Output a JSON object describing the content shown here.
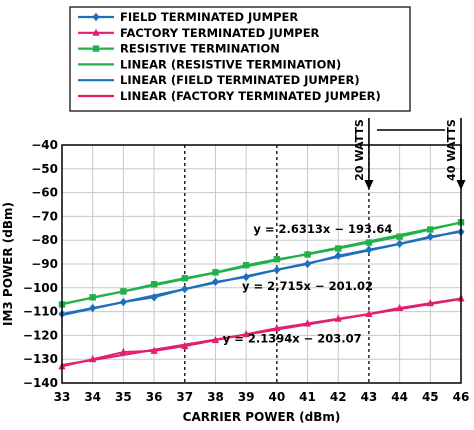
{
  "chart_data": {
    "type": "line",
    "xlabel": "CARRIER POWER (dBm)",
    "ylabel": "IM3 POWER (dBm)",
    "xlim": [
      33,
      46
    ],
    "ylim": [
      -140,
      -40
    ],
    "x_ticks": [
      33,
      34,
      35,
      36,
      37,
      38,
      39,
      40,
      41,
      42,
      43,
      44,
      45,
      46
    ],
    "y_ticks": [
      -40,
      -50,
      -60,
      -70,
      -80,
      -90,
      -100,
      -110,
      -120,
      -130,
      -140
    ],
    "y_tick_labels": [
      "−40",
      "−50",
      "−60",
      "−70",
      "−80",
      "−90",
      "−100",
      "−110",
      "−120",
      "−130",
      "−140"
    ],
    "grid": true,
    "emphasized_gridlines_x": [
      37,
      40,
      43
    ],
    "legend_position": "top",
    "series": [
      {
        "name": "FIELD TERMINATED JUMPER",
        "color": "#1f6fbf",
        "marker": "diamond",
        "x": [
          33,
          34,
          35,
          36,
          37,
          38,
          39,
          40,
          41,
          42,
          43,
          44,
          45,
          46
        ],
        "y": [
          -111,
          -108.5,
          -106,
          -104,
          -100.5,
          -97.5,
          -95.5,
          -92.5,
          -90,
          -86.5,
          -84,
          -81.5,
          -78.5,
          -76.5
        ]
      },
      {
        "name": "FACTORY TERMINATED JUMPER",
        "color": "#e0206e",
        "marker": "triangle",
        "x": [
          33,
          34,
          35,
          36,
          37,
          38,
          39,
          40,
          41,
          42,
          43,
          44,
          45,
          46
        ],
        "y": [
          -133,
          -130,
          -127,
          -126.5,
          -124.5,
          -122,
          -119.5,
          -117,
          -115,
          -113,
          -111,
          -108.5,
          -106.5,
          -104.5
        ]
      },
      {
        "name": "RESISTIVE TERMINATION",
        "color": "#22b04a",
        "marker": "square",
        "x": [
          33,
          34,
          35,
          36,
          37,
          38,
          39,
          40,
          41,
          42,
          43,
          44,
          45,
          46
        ],
        "y": [
          -107,
          -104,
          -101.5,
          -98.5,
          -96,
          -93.5,
          -90.5,
          -88,
          -86,
          -83.5,
          -81,
          -78.5,
          -75.5,
          -72.5
        ]
      },
      {
        "name": "LINEAR (RESISTIVE TERMINATION)",
        "color": "#22b04a",
        "marker": "none",
        "fit": {
          "slope": 2.6313,
          "intercept": -193.64
        }
      },
      {
        "name": "LINEAR (FIELD TERMINATED JUMPER)",
        "color": "#1f6fbf",
        "marker": "none",
        "fit": {
          "slope": 2.715,
          "intercept": -201.02
        }
      },
      {
        "name": "LINEAR (FACTORY TERMINATED JUMPER)",
        "color": "#e0206e",
        "marker": "none",
        "fit": {
          "slope": 2.1394,
          "intercept": -203.07
        }
      }
    ],
    "annotations": [
      {
        "text": "y = 2.6313x − 193.64",
        "anchor": [
          41.5,
          -77
        ]
      },
      {
        "text": "y = 2.715x − 201.02",
        "anchor": [
          41.0,
          -101
        ]
      },
      {
        "text": "y = 2.1394x − 203.07",
        "anchor": [
          40.5,
          -123
        ]
      },
      {
        "text": "20 WATTS",
        "x": 43
      },
      {
        "text": "40 WATTS",
        "x": 46
      }
    ]
  }
}
